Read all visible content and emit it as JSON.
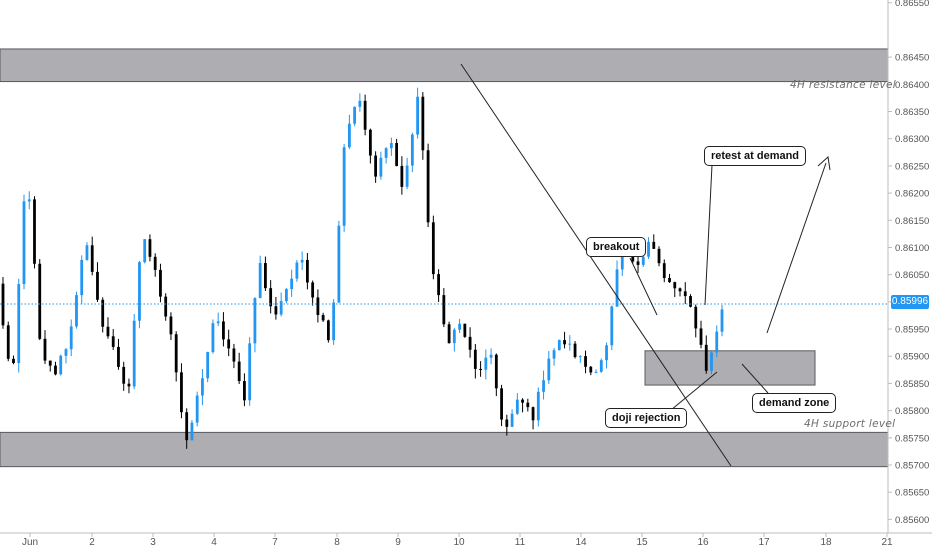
{
  "chart_data": {
    "type": "candlestick",
    "symbol_timeframe": "4H",
    "x_ticks": [
      "Jun",
      "2",
      "3",
      "4",
      "7",
      "8",
      "9",
      "10",
      "11",
      "14",
      "15",
      "16",
      "17",
      "18",
      "21"
    ],
    "y_ticks": [
      "0.86550",
      "0.86450",
      "0.86400",
      "0.86350",
      "0.86300",
      "0.86250",
      "0.86200",
      "0.86150",
      "0.86100",
      "0.86050",
      "0.86000",
      "0.85950",
      "0.85900",
      "0.85850",
      "0.85800",
      "0.85750",
      "0.85700",
      "0.85650",
      "0.85600"
    ],
    "ylim": [
      0.85575,
      0.86555
    ],
    "current_price": "0.85996",
    "zones": [
      {
        "name": "4H resistance level",
        "from": 0.86405,
        "to": 0.86465
      },
      {
        "name": "4H support level",
        "from": 0.85697,
        "to": 0.8576
      },
      {
        "name": "demand zone",
        "from": 0.85847,
        "to": 0.8591
      }
    ],
    "annotations": {
      "breakout": "breakout",
      "retest": "retest at demand",
      "doji": "doji rejection",
      "demand": "demand zone",
      "resistance_label": "4H resistance level",
      "support_label": "4H support level"
    },
    "candle_count": 138,
    "candle_up_color": "#2196f3",
    "candle_down_color": "#000000",
    "key_prices": [
      0.8603,
      0.8584,
      0.8626,
      0.8589,
      0.8587,
      0.8594,
      0.8612,
      0.8598,
      0.8591,
      0.8583,
      0.8613,
      0.8604,
      0.8594,
      0.8573,
      0.8585,
      0.8597,
      0.8591,
      0.8582,
      0.8608,
      0.8597,
      0.8603,
      0.8608,
      0.8599,
      0.8593,
      0.8632,
      0.8637,
      0.8622,
      0.8631,
      0.862,
      0.8638,
      0.8606,
      0.8593,
      0.8596,
      0.8587,
      0.859,
      0.8576,
      0.8582,
      0.8579,
      0.859,
      0.8593,
      0.859,
      0.8587,
      0.8591,
      0.861,
      0.8606,
      0.8612,
      0.8604,
      0.8602,
      0.8598,
      0.8587,
      0.8599
    ]
  },
  "colors": {
    "zone_fill": "#a5a5aa",
    "zone_stroke": "#5a5a5e",
    "price_line": "#2196f3",
    "axis_text": "#555555"
  }
}
